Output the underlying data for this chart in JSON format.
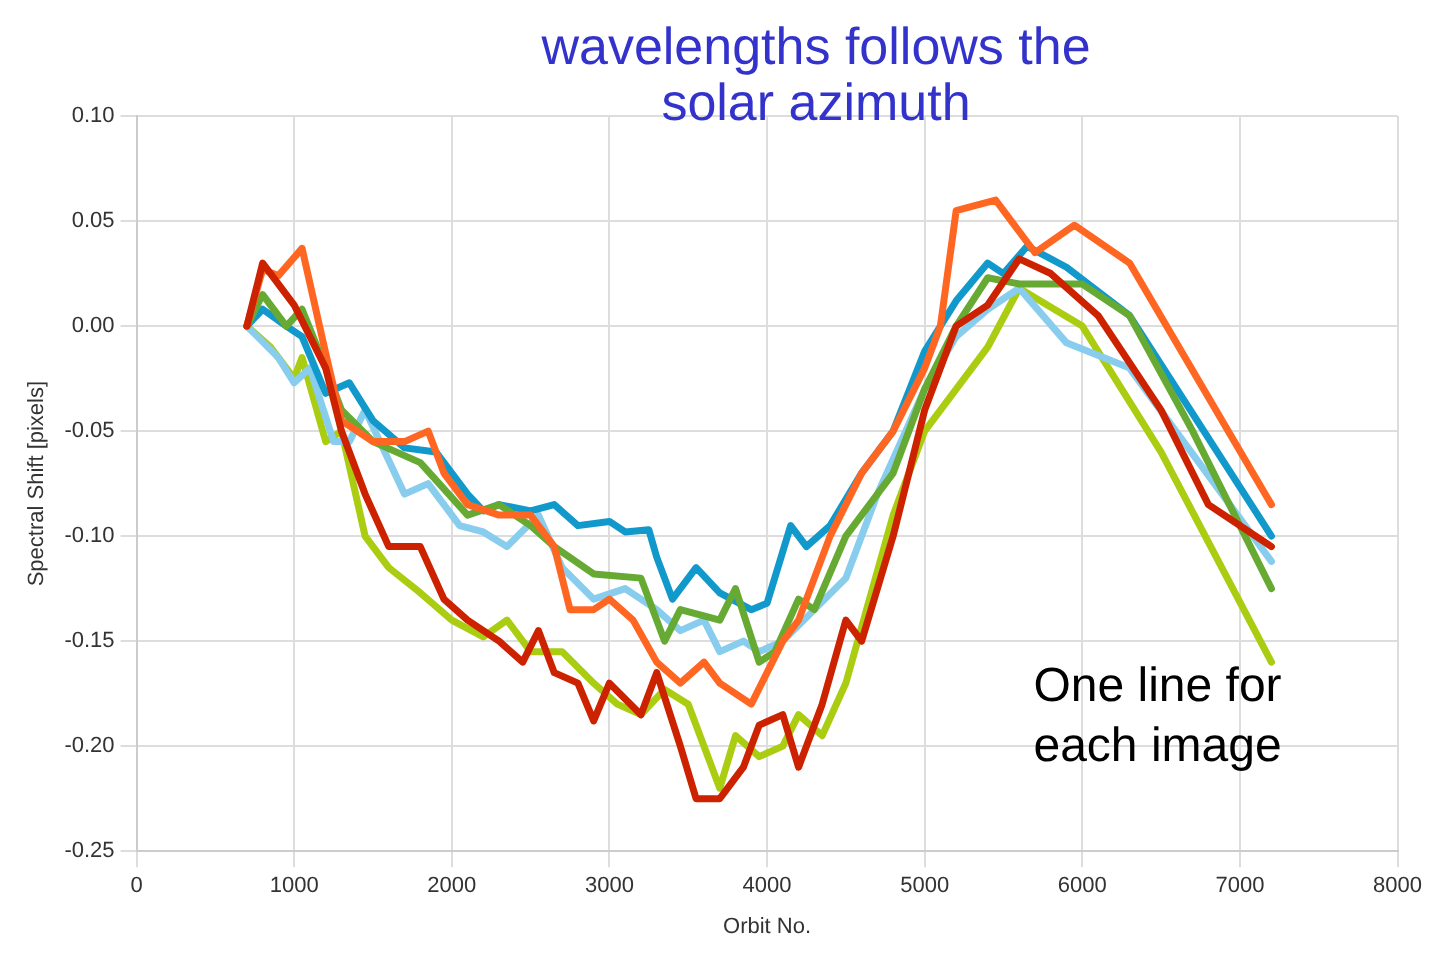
{
  "chart_data": {
    "type": "line",
    "title": "wavelengths follows the solar azimuth",
    "xlabel": "Orbit No.",
    "ylabel": "Spectral Shift [pixels]",
    "annotations": [
      "One line for each image"
    ],
    "xlim": [
      0,
      8000
    ],
    "xticks": [
      0,
      1000,
      2000,
      3000,
      4000,
      5000,
      6000,
      7000,
      8000
    ],
    "ylim": [
      -0.25,
      0.1
    ],
    "yticks": [
      {
        "value": -0.25,
        "label": "-0.25"
      },
      {
        "value": -0.2,
        "label": "-0.20"
      },
      {
        "value": -0.15,
        "label": "-0.15"
      },
      {
        "value": -0.1,
        "label": "-0.10"
      },
      {
        "value": -0.05,
        "label": "-0.05"
      },
      {
        "value": 0,
        "label": "0.00"
      },
      {
        "value": 0.05,
        "label": "0.05"
      },
      {
        "value": 0.1,
        "label": "0.10"
      }
    ],
    "grid": true,
    "legend": false,
    "marker": "none",
    "line_style": "solid",
    "series": [
      {
        "color": "#cc2200",
        "x": [
          700,
          800,
          1000,
          1200,
          1300,
          1450,
          1600,
          1800,
          1950,
          2100,
          2300,
          2450,
          2550,
          2650,
          2800,
          2900,
          3000,
          3200,
          3300,
          3450,
          3550,
          3700,
          3850,
          3950,
          4100,
          4200,
          4350,
          4500,
          4600,
          4800,
          5000,
          5200,
          5400,
          5600,
          5800,
          6100,
          6500,
          6800,
          7200
        ],
        "values": [
          0,
          0.03,
          0.01,
          -0.02,
          -0.05,
          -0.08,
          -0.105,
          -0.105,
          -0.13,
          -0.14,
          -0.15,
          -0.16,
          -0.145,
          -0.165,
          -0.17,
          -0.188,
          -0.17,
          -0.185,
          -0.165,
          -0.2,
          -0.225,
          -0.225,
          -0.21,
          -0.19,
          -0.185,
          -0.21,
          -0.18,
          -0.14,
          -0.15,
          -0.1,
          -0.04,
          0,
          0.01,
          0.032,
          0.025,
          0.005,
          -0.04,
          -0.085,
          -0.105
        ]
      },
      {
        "color": "#ff6622",
        "x": [
          700,
          800,
          900,
          1050,
          1200,
          1300,
          1500,
          1700,
          1850,
          1950,
          2100,
          2300,
          2500,
          2650,
          2750,
          2900,
          3000,
          3150,
          3300,
          3450,
          3600,
          3700,
          3900,
          4000,
          4100,
          4200,
          4400,
          4600,
          4800,
          5000,
          5100,
          5200,
          5300,
          5450,
          5550,
          5700,
          5950,
          6300,
          7200
        ],
        "values": [
          0,
          0.027,
          0.024,
          0.037,
          -0.013,
          -0.045,
          -0.055,
          -0.055,
          -0.05,
          -0.07,
          -0.085,
          -0.09,
          -0.09,
          -0.105,
          -0.135,
          -0.135,
          -0.13,
          -0.14,
          -0.16,
          -0.17,
          -0.16,
          -0.17,
          -0.18,
          -0.165,
          -0.15,
          -0.14,
          -0.1,
          -0.07,
          -0.05,
          -0.02,
          0,
          0.055,
          0.057,
          0.06,
          0.05,
          0.035,
          0.048,
          0.03,
          -0.085
        ]
      },
      {
        "color": "#66aa33",
        "x": [
          700,
          800,
          950,
          1050,
          1200,
          1300,
          1500,
          1800,
          2100,
          2300,
          2500,
          2650,
          2900,
          3200,
          3350,
          3450,
          3700,
          3800,
          3950,
          4050,
          4200,
          4300,
          4500,
          4800,
          5000,
          5200,
          5400,
          5600,
          6000,
          6300,
          6700,
          7200
        ],
        "values": [
          0,
          0.015,
          0,
          0.008,
          -0.02,
          -0.04,
          -0.055,
          -0.065,
          -0.09,
          -0.085,
          -0.095,
          -0.105,
          -0.118,
          -0.12,
          -0.15,
          -0.135,
          -0.14,
          -0.125,
          -0.16,
          -0.155,
          -0.13,
          -0.135,
          -0.1,
          -0.07,
          -0.03,
          0,
          0.023,
          0.02,
          0.02,
          0.005,
          -0.05,
          -0.125
        ]
      },
      {
        "color": "#1199cc",
        "x": [
          700,
          800,
          950,
          1050,
          1200,
          1350,
          1500,
          1700,
          1900,
          2100,
          2200,
          2300,
          2500,
          2650,
          2800,
          3000,
          3100,
          3250,
          3300,
          3400,
          3550,
          3700,
          3900,
          4000,
          4150,
          4250,
          4400,
          4600,
          4800,
          5000,
          5200,
          5400,
          5500,
          5650,
          5900,
          6300,
          7200
        ],
        "values": [
          0,
          0.008,
          0,
          -0.005,
          -0.032,
          -0.027,
          -0.045,
          -0.058,
          -0.06,
          -0.08,
          -0.088,
          -0.085,
          -0.088,
          -0.085,
          -0.095,
          -0.093,
          -0.098,
          -0.097,
          -0.11,
          -0.13,
          -0.115,
          -0.127,
          -0.135,
          -0.132,
          -0.095,
          -0.105,
          -0.095,
          -0.07,
          -0.05,
          -0.012,
          0.012,
          0.03,
          0.025,
          0.038,
          0.028,
          0.005,
          -0.1
        ]
      },
      {
        "color": "#88ccee",
        "x": [
          700,
          900,
          1000,
          1100,
          1250,
          1350,
          1450,
          1700,
          1850,
          2050,
          2200,
          2350,
          2550,
          2700,
          2900,
          3100,
          3300,
          3450,
          3600,
          3700,
          3850,
          3950,
          4100,
          4300,
          4500,
          4700,
          5000,
          5200,
          5400,
          5600,
          5900,
          6300,
          7200
        ],
        "values": [
          0,
          -0.015,
          -0.027,
          -0.02,
          -0.055,
          -0.055,
          -0.04,
          -0.08,
          -0.075,
          -0.095,
          -0.098,
          -0.105,
          -0.09,
          -0.115,
          -0.13,
          -0.125,
          -0.135,
          -0.145,
          -0.14,
          -0.155,
          -0.15,
          -0.155,
          -0.15,
          -0.135,
          -0.12,
          -0.08,
          -0.03,
          -0.005,
          0.008,
          0.018,
          -0.008,
          -0.02,
          -0.112
        ]
      },
      {
        "color": "#aacc11",
        "x": [
          700,
          850,
          1000,
          1050,
          1200,
          1300,
          1450,
          1600,
          1800,
          2000,
          2200,
          2350,
          2500,
          2700,
          2900,
          3050,
          3200,
          3350,
          3500,
          3600,
          3700,
          3800,
          3950,
          4100,
          4200,
          4350,
          4500,
          4800,
          5000,
          5200,
          5400,
          5600,
          6000,
          6500,
          7200
        ],
        "values": [
          0,
          -0.01,
          -0.025,
          -0.015,
          -0.055,
          -0.05,
          -0.1,
          -0.115,
          -0.127,
          -0.14,
          -0.148,
          -0.14,
          -0.155,
          -0.155,
          -0.17,
          -0.18,
          -0.185,
          -0.173,
          -0.18,
          -0.2,
          -0.22,
          -0.195,
          -0.205,
          -0.2,
          -0.185,
          -0.195,
          -0.17,
          -0.09,
          -0.05,
          -0.03,
          -0.01,
          0.018,
          0,
          -0.06,
          -0.16
        ]
      }
    ]
  }
}
